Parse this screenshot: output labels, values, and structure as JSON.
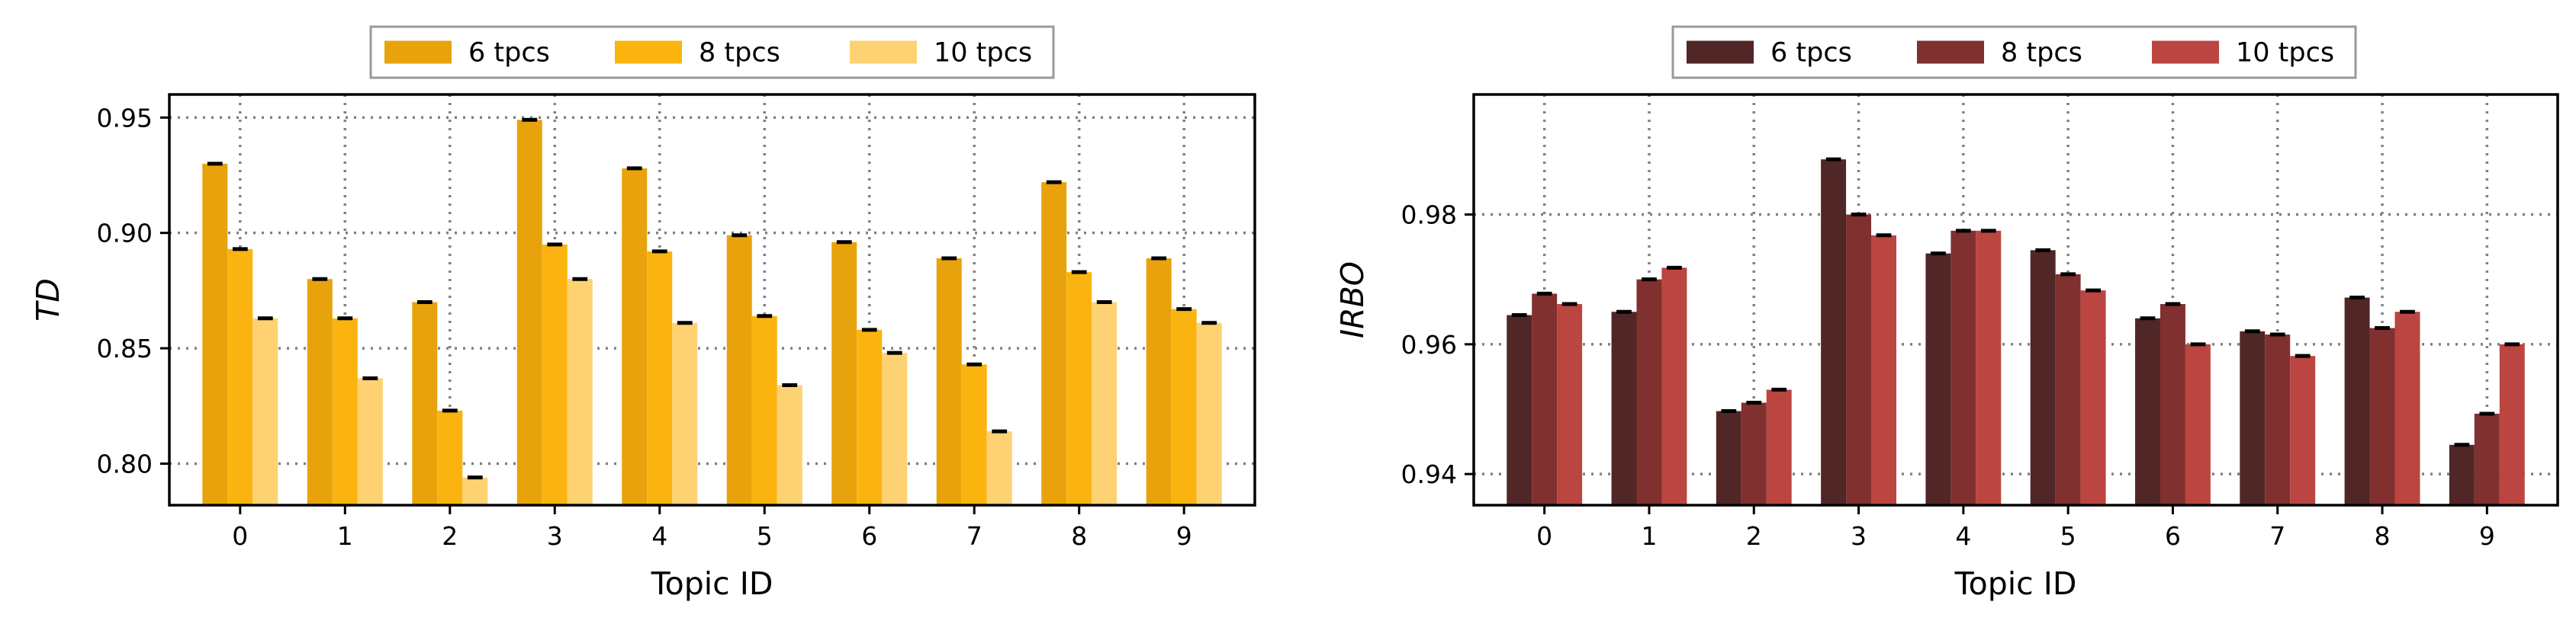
{
  "chart_data": [
    {
      "type": "bar",
      "xlabel": "Topic ID",
      "ylabel": "TD",
      "categories": [
        "0",
        "1",
        "2",
        "3",
        "4",
        "5",
        "6",
        "7",
        "8",
        "9"
      ],
      "ylim": [
        0.782,
        0.96
      ],
      "yticks": [
        0.8,
        0.85,
        0.9,
        0.95
      ],
      "ytick_labels": [
        "0.80",
        "0.85",
        "0.90",
        "0.95"
      ],
      "grid": true,
      "legend_position": "top-center",
      "series": [
        {
          "name": "6 tpcs",
          "color": "#E8A30C",
          "values": [
            0.93,
            0.88,
            0.87,
            0.949,
            0.928,
            0.899,
            0.896,
            0.889,
            0.922,
            0.889
          ]
        },
        {
          "name": "8 tpcs",
          "color": "#FBB40F",
          "values": [
            0.893,
            0.863,
            0.823,
            0.895,
            0.892,
            0.864,
            0.858,
            0.843,
            0.883,
            0.867
          ]
        },
        {
          "name": "10 tpcs",
          "color": "#FED273",
          "values": [
            0.863,
            0.837,
            0.794,
            0.88,
            0.861,
            0.834,
            0.848,
            0.814,
            0.87,
            0.861
          ]
        }
      ]
    },
    {
      "type": "bar",
      "xlabel": "Topic ID",
      "ylabel": "IRBO",
      "categories": [
        "0",
        "1",
        "2",
        "3",
        "4",
        "5",
        "6",
        "7",
        "8",
        "9"
      ],
      "ylim": [
        0.9352,
        0.9985
      ],
      "yticks": [
        0.94,
        0.96,
        0.98
      ],
      "ytick_labels": [
        "0.94",
        "0.96",
        "0.98"
      ],
      "grid": true,
      "legend_position": "top-center",
      "series": [
        {
          "name": "6 tpcs",
          "color": "#512626",
          "values": [
            0.9645,
            0.965,
            0.9497,
            0.9885,
            0.974,
            0.9745,
            0.964,
            0.962,
            0.9672,
            0.9445
          ]
        },
        {
          "name": "8 tpcs",
          "color": "#80302E",
          "values": [
            0.9678,
            0.97,
            0.951,
            0.98,
            0.9775,
            0.9708,
            0.9662,
            0.9615,
            0.9625,
            0.9493
          ]
        },
        {
          "name": "10 tpcs",
          "color": "#BB4540",
          "values": [
            0.9662,
            0.9718,
            0.953,
            0.9768,
            0.9775,
            0.9683,
            0.96,
            0.9582,
            0.965,
            0.96
          ]
        }
      ]
    }
  ]
}
